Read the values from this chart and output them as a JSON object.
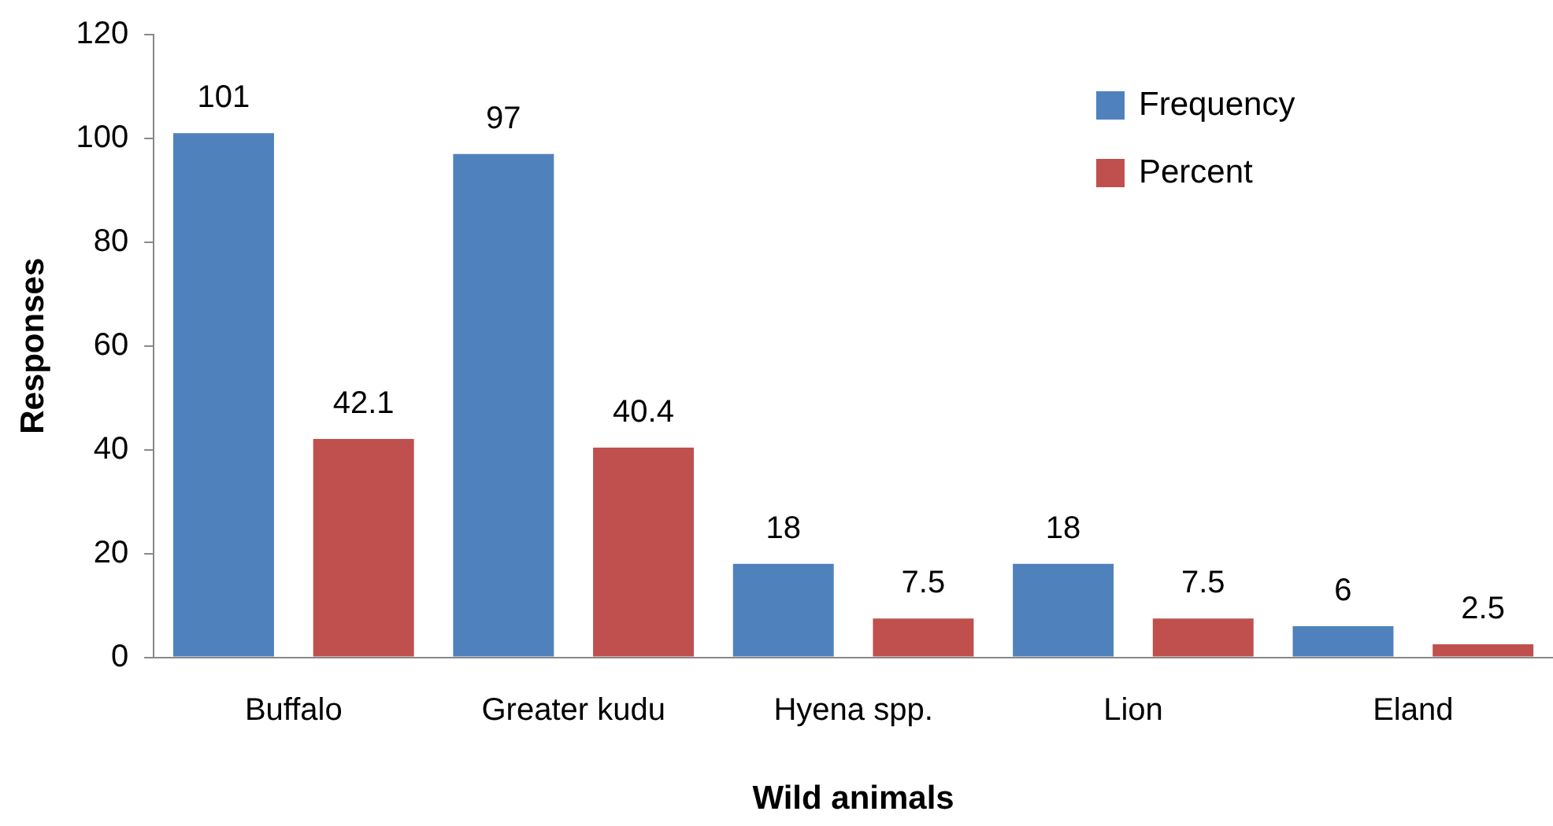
{
  "chart_data": {
    "type": "bar",
    "xlabel": "Wild animals",
    "ylabel": "Responses",
    "categories": [
      "Buffalo",
      "Greater kudu",
      "Hyena spp.",
      "Lion",
      "Eland"
    ],
    "series": [
      {
        "name": "Frequency",
        "color": "#4f81bd",
        "values": [
          101,
          97,
          18,
          18,
          6
        ]
      },
      {
        "name": "Percent",
        "color": "#c0504d",
        "values": [
          42.1,
          40.4,
          7.5,
          7.5,
          2.5
        ]
      }
    ],
    "ylim": [
      0,
      120
    ],
    "yticks": [
      0,
      20,
      40,
      60,
      80,
      100,
      120
    ],
    "grid": false,
    "legend": "top right",
    "data_labels": true
  }
}
